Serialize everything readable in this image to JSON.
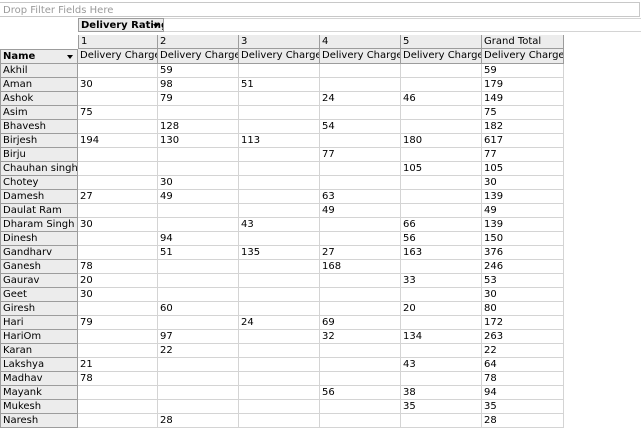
{
  "filter_area": {
    "placeholder": "Drop Filter Fields Here"
  },
  "column_field": {
    "label": "Delivery Rating"
  },
  "row_field": {
    "label": "Name"
  },
  "column_groups": [
    "1",
    "2",
    "3",
    "4",
    "5",
    "Grand Total"
  ],
  "measure_label": "Delivery Charge",
  "rows": [
    {
      "name": "Akhil",
      "values": [
        "",
        "59",
        "",
        "",
        "",
        "59"
      ]
    },
    {
      "name": "Aman",
      "values": [
        "30",
        "98",
        "51",
        "",
        "",
        "179"
      ]
    },
    {
      "name": "Ashok",
      "values": [
        "",
        "79",
        "",
        "24",
        "46",
        "149"
      ]
    },
    {
      "name": "Asim",
      "values": [
        "75",
        "",
        "",
        "",
        "",
        "75"
      ]
    },
    {
      "name": "Bhavesh",
      "values": [
        "",
        "128",
        "",
        "54",
        "",
        "182"
      ]
    },
    {
      "name": "Birjesh",
      "values": [
        "194",
        "130",
        "113",
        "",
        "180",
        "617"
      ]
    },
    {
      "name": "Birju",
      "values": [
        "",
        "",
        "",
        "77",
        "",
        "77"
      ]
    },
    {
      "name": "Chauhan singh",
      "values": [
        "",
        "",
        "",
        "",
        "105",
        "105"
      ]
    },
    {
      "name": "Chotey",
      "values": [
        "",
        "30",
        "",
        "",
        "",
        "30"
      ]
    },
    {
      "name": "Damesh",
      "values": [
        "27",
        "49",
        "",
        "63",
        "",
        "139"
      ]
    },
    {
      "name": "Daulat Ram",
      "values": [
        "",
        "",
        "",
        "49",
        "",
        "49"
      ]
    },
    {
      "name": "Dharam Singh",
      "values": [
        "30",
        "",
        "43",
        "",
        "66",
        "139"
      ]
    },
    {
      "name": "Dinesh",
      "values": [
        "",
        "94",
        "",
        "",
        "56",
        "150"
      ]
    },
    {
      "name": "Gandharv",
      "values": [
        "",
        "51",
        "135",
        "27",
        "163",
        "376"
      ]
    },
    {
      "name": "Ganesh",
      "values": [
        "78",
        "",
        "",
        "168",
        "",
        "246"
      ]
    },
    {
      "name": "Gaurav",
      "values": [
        "20",
        "",
        "",
        "",
        "33",
        "53"
      ]
    },
    {
      "name": "Geet",
      "values": [
        "30",
        "",
        "",
        "",
        "",
        "30"
      ]
    },
    {
      "name": "Giresh",
      "values": [
        "",
        "60",
        "",
        "",
        "20",
        "80"
      ]
    },
    {
      "name": "Hari",
      "values": [
        "79",
        "",
        "24",
        "69",
        "",
        "172"
      ]
    },
    {
      "name": "HariOm",
      "values": [
        "",
        "97",
        "",
        "32",
        "134",
        "263"
      ]
    },
    {
      "name": "Karan",
      "values": [
        "",
        "22",
        "",
        "",
        "",
        "22"
      ]
    },
    {
      "name": "Lakshya",
      "values": [
        "21",
        "",
        "",
        "",
        "43",
        "64"
      ]
    },
    {
      "name": "Madhav",
      "values": [
        "78",
        "",
        "",
        "",
        "",
        "78"
      ]
    },
    {
      "name": "Mayank",
      "values": [
        "",
        "",
        "",
        "56",
        "38",
        "94"
      ]
    },
    {
      "name": "Mukesh",
      "values": [
        "",
        "",
        "",
        "",
        "35",
        "35"
      ]
    },
    {
      "name": "Naresh",
      "values": [
        "",
        "28",
        "",
        "",
        "",
        "28"
      ]
    }
  ]
}
